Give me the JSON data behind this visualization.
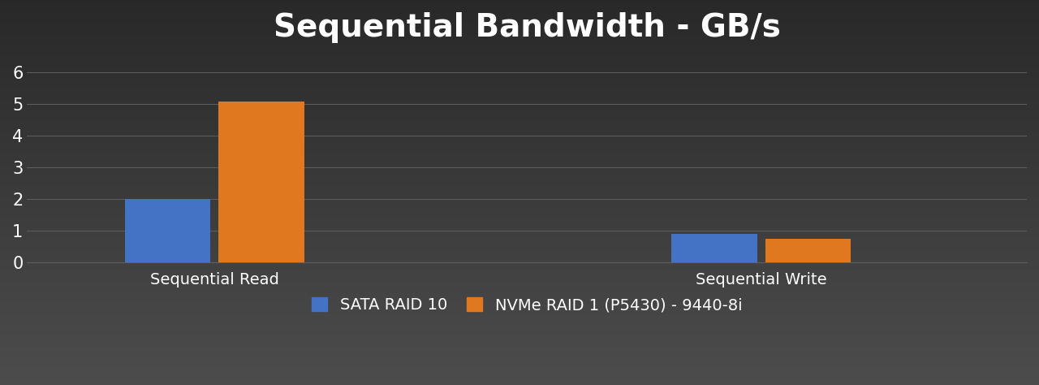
{
  "title": "Sequential Bandwidth - GB/s",
  "categories": [
    "Sequential Read",
    "Sequential Write"
  ],
  "series": [
    {
      "name": "SATA RAID 10",
      "color": "#4472C4",
      "values": [
        2.0,
        0.9
      ]
    },
    {
      "name": "NVMe RAID 1 (P5430) - 9440-8i",
      "color": "#E07820",
      "values": [
        5.1,
        0.75
      ]
    }
  ],
  "ylim": [
    0,
    6.5
  ],
  "yticks": [
    0,
    1,
    2,
    3,
    4,
    5,
    6
  ],
  "background_color": "#3a3a3a",
  "background_top": "#2e2e2e",
  "background_bottom": "#484848",
  "text_color": "#ffffff",
  "grid_color": "#606060",
  "title_fontsize": 28,
  "tick_fontsize": 15,
  "legend_fontsize": 14,
  "category_fontsize": 14,
  "bar_width": 0.55,
  "group_positions": [
    1.0,
    4.5
  ],
  "xlim": [
    -0.2,
    6.2
  ]
}
